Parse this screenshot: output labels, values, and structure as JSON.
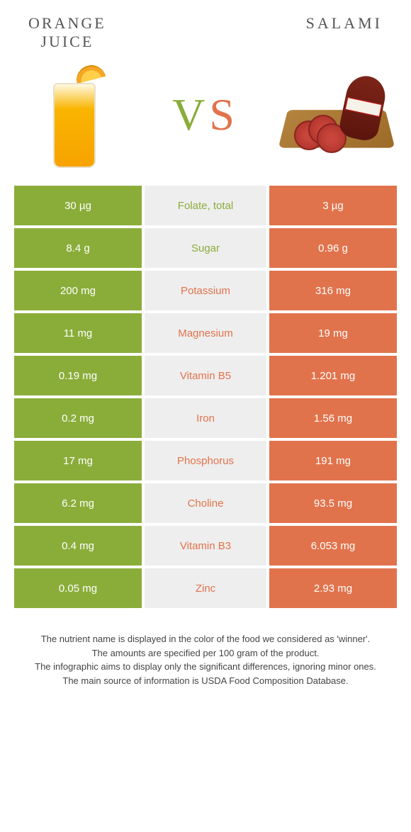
{
  "comparison": {
    "left_title": "ORANGE\nJUICE",
    "right_title": "Salami",
    "vs_label_v": "V",
    "vs_label_s": "S",
    "colors": {
      "left": "#8aad3a",
      "right": "#e1734c",
      "mid_bg": "#eeeeee",
      "row_text": "#ffffff"
    },
    "rows": [
      {
        "left": "30 µg",
        "label": "Folate, total",
        "right": "3 µg",
        "winner": "left"
      },
      {
        "left": "8.4 g",
        "label": "Sugar",
        "right": "0.96 g",
        "winner": "left"
      },
      {
        "left": "200 mg",
        "label": "Potassium",
        "right": "316 mg",
        "winner": "right"
      },
      {
        "left": "11 mg",
        "label": "Magnesium",
        "right": "19 mg",
        "winner": "right"
      },
      {
        "left": "0.19 mg",
        "label": "Vitamin B5",
        "right": "1.201 mg",
        "winner": "right"
      },
      {
        "left": "0.2 mg",
        "label": "Iron",
        "right": "1.56 mg",
        "winner": "right"
      },
      {
        "left": "17 mg",
        "label": "Phosphorus",
        "right": "191 mg",
        "winner": "right"
      },
      {
        "left": "6.2 mg",
        "label": "Choline",
        "right": "93.5 mg",
        "winner": "right"
      },
      {
        "left": "0.4 mg",
        "label": "Vitamin B3",
        "right": "6.053 mg",
        "winner": "right"
      },
      {
        "left": "0.05 mg",
        "label": "Zinc",
        "right": "2.93 mg",
        "winner": "right"
      }
    ]
  },
  "footer": {
    "line1": "The nutrient name is displayed in the color of the food we considered as 'winner'.",
    "line2": "The amounts are specified per 100 gram of the product.",
    "line3": "The infographic aims to display only the significant differences, ignoring minor ones.",
    "line4": "The main source of information is USDA Food Composition Database."
  }
}
